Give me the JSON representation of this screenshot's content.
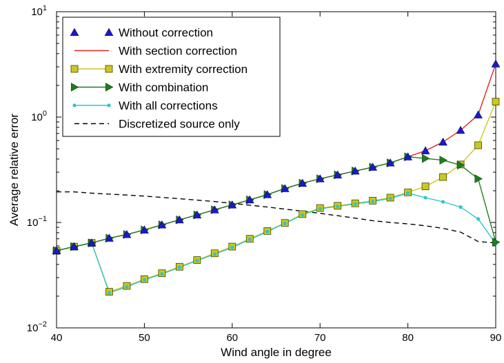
{
  "chart_data": {
    "type": "line",
    "title": "",
    "xlabel": "Wind angle in degree",
    "ylabel": "Average relative error",
    "yscale": "log",
    "xlim": [
      40,
      90
    ],
    "ylim": [
      0.01,
      10
    ],
    "grid": false,
    "legend_position": "top-left",
    "x_ticks": [
      40,
      50,
      60,
      70,
      80,
      90
    ],
    "y_ticks": [
      {
        "value": 0.01,
        "base": "10",
        "exp": "−2"
      },
      {
        "value": 0.1,
        "base": "10",
        "exp": "−1"
      },
      {
        "value": 1,
        "base": "10",
        "exp": "0"
      },
      {
        "value": 10,
        "base": "10",
        "exp": "1"
      }
    ],
    "x": [
      40,
      42,
      44,
      46,
      48,
      50,
      52,
      54,
      56,
      58,
      60,
      62,
      64,
      66,
      68,
      70,
      72,
      74,
      76,
      78,
      80,
      82,
      84,
      86,
      88,
      90
    ],
    "series": [
      {
        "name": "Without correction",
        "color": "#1a1ac8",
        "marker": "triangle-up",
        "line": "none",
        "values": [
          0.054,
          0.059,
          0.064,
          0.071,
          0.077,
          0.085,
          0.095,
          0.106,
          0.118,
          0.132,
          0.147,
          0.164,
          0.184,
          0.21,
          0.236,
          0.26,
          0.283,
          0.308,
          0.335,
          0.368,
          0.42,
          0.48,
          0.58,
          0.75,
          1.05,
          3.2
        ]
      },
      {
        "name": "With section correction",
        "color": "#e0231f",
        "marker": "none",
        "line": "solid",
        "values": [
          0.054,
          0.059,
          0.064,
          0.071,
          0.077,
          0.085,
          0.095,
          0.106,
          0.118,
          0.132,
          0.147,
          0.164,
          0.184,
          0.21,
          0.236,
          0.26,
          0.283,
          0.308,
          0.335,
          0.368,
          0.42,
          0.48,
          0.58,
          0.75,
          1.05,
          3.2
        ]
      },
      {
        "name": "With extremity correction",
        "color": "#c8c820",
        "marker": "square",
        "line": "solid",
        "values": [
          0.054,
          0.059,
          0.064,
          0.022,
          0.025,
          0.029,
          0.033,
          0.038,
          0.044,
          0.051,
          0.059,
          0.07,
          0.083,
          0.099,
          0.12,
          0.137,
          0.144,
          0.152,
          0.161,
          0.172,
          0.193,
          0.22,
          0.27,
          0.355,
          0.54,
          1.4
        ]
      },
      {
        "name": "With combination",
        "color": "#1e7b1e",
        "marker": "triangle-right",
        "line": "solid",
        "values": [
          0.054,
          0.059,
          0.064,
          0.071,
          0.077,
          0.085,
          0.095,
          0.106,
          0.118,
          0.132,
          0.147,
          0.164,
          0.184,
          0.21,
          0.236,
          0.26,
          0.283,
          0.308,
          0.335,
          0.368,
          0.42,
          0.405,
          0.39,
          0.35,
          0.26,
          0.065
        ]
      },
      {
        "name": "With all corrections",
        "color": "#2ec4c8",
        "marker": "dot",
        "line": "solid",
        "values": [
          0.054,
          0.059,
          0.064,
          0.0215,
          0.0245,
          0.0285,
          0.0325,
          0.0375,
          0.0435,
          0.05,
          0.058,
          0.069,
          0.082,
          0.098,
          0.118,
          0.135,
          0.142,
          0.15,
          0.158,
          0.169,
          0.19,
          0.172,
          0.157,
          0.14,
          0.108,
          0.063
        ]
      },
      {
        "name": "Discretized source only",
        "color": "#000000",
        "marker": "none",
        "line": "dashed",
        "values": [
          0.195,
          0.195,
          0.19,
          0.186,
          0.182,
          0.178,
          0.173,
          0.168,
          0.163,
          0.158,
          0.152,
          0.146,
          0.14,
          0.134,
          0.128,
          0.122,
          0.116,
          0.11,
          0.104,
          0.1,
          0.097,
          0.093,
          0.088,
          0.081,
          0.066,
          0.064
        ]
      }
    ]
  }
}
